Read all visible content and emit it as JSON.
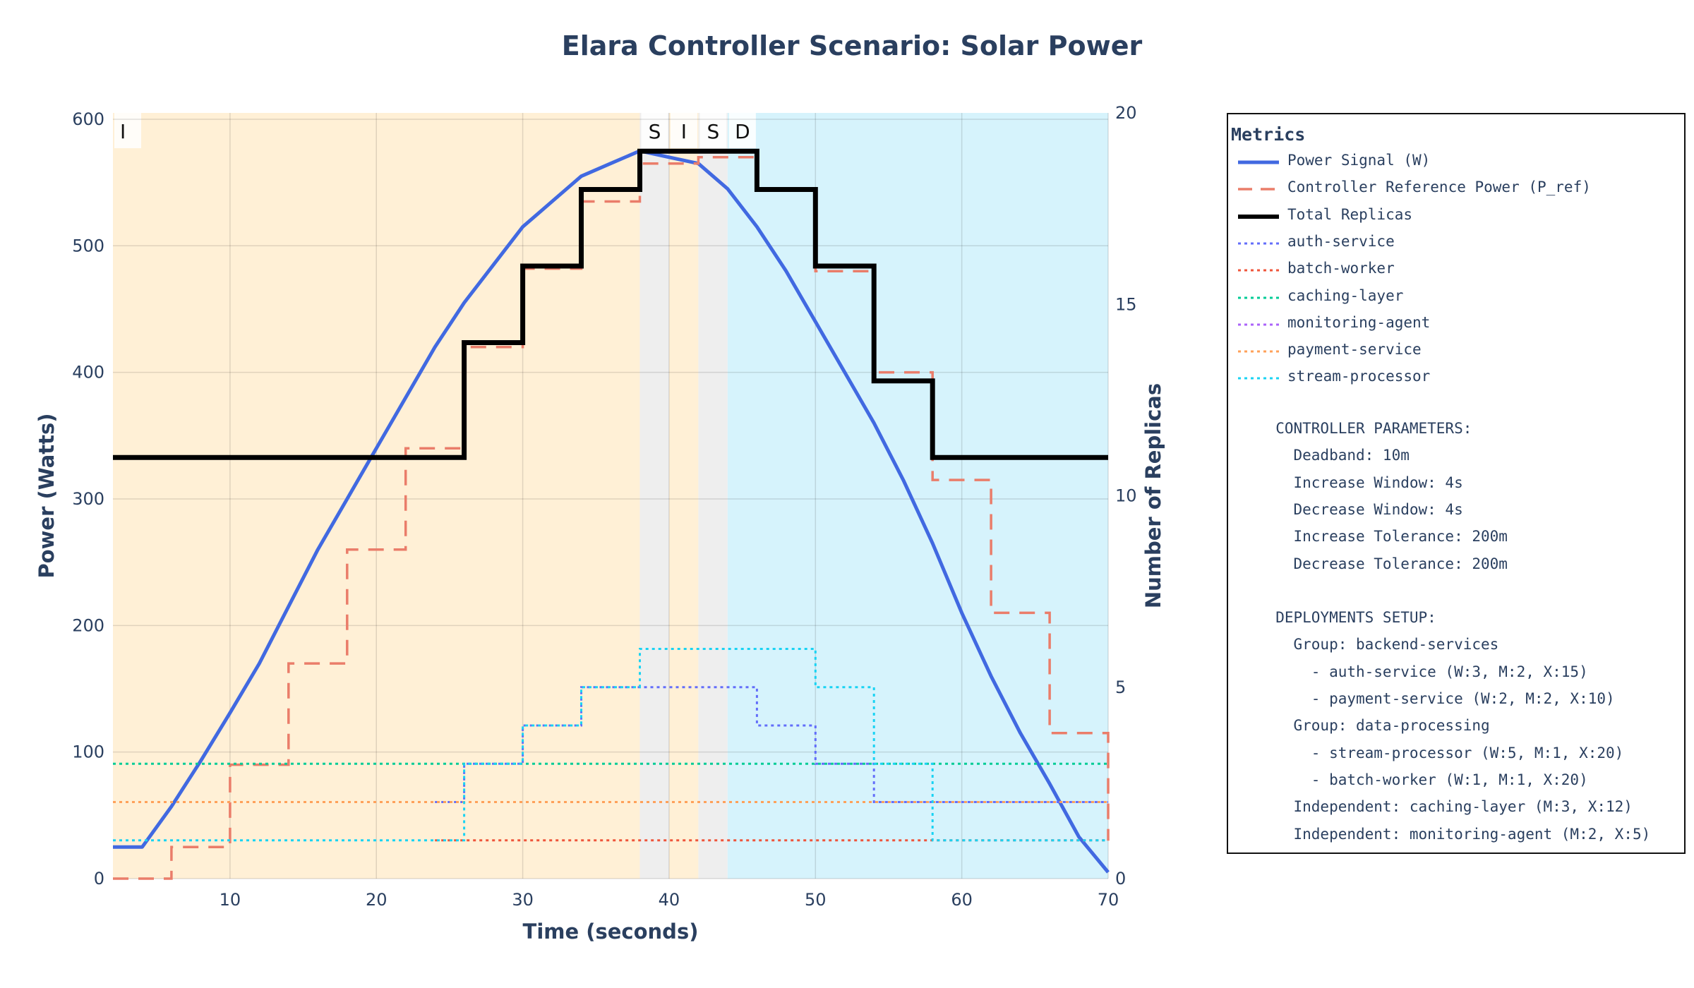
{
  "chart_data": {
    "type": "line",
    "title": "Elara Controller Scenario: Solar Power",
    "xlabel": "Time (seconds)",
    "ylabel": "Power (Watts)",
    "y2label": "Number of Replicas",
    "xlim": [
      2,
      70
    ],
    "ylim": [
      0,
      605
    ],
    "y2lim": [
      0,
      20
    ],
    "x_ticks": [
      10,
      20,
      30,
      40,
      50,
      60,
      70
    ],
    "y_ticks": [
      0,
      100,
      200,
      300,
      400,
      500,
      600
    ],
    "y2_ticks": [
      0,
      5,
      10,
      15,
      20
    ],
    "grid": true,
    "phase_regions": [
      {
        "label": "I",
        "x0": 2,
        "x1": 38,
        "color": "#fff0d6"
      },
      {
        "label": "S",
        "x0": 38,
        "x1": 40,
        "color": "#eeeeee"
      },
      {
        "label": "I",
        "x0": 40,
        "x1": 42,
        "color": "#fff0d6"
      },
      {
        "label": "S",
        "x0": 42,
        "x1": 44,
        "color": "#eeeeee"
      },
      {
        "label": "D",
        "x0": 44,
        "x1": 70,
        "color": "#d6f3fc"
      }
    ],
    "series": [
      {
        "name": "Power Signal (W)",
        "axis": "y",
        "color": "#4169e1",
        "dash": "solid",
        "width": 5,
        "step": false,
        "x": [
          2,
          4,
          6,
          8,
          10,
          12,
          14,
          16,
          18,
          20,
          22,
          24,
          26,
          28,
          30,
          32,
          34,
          36,
          38,
          40,
          42,
          44,
          46,
          48,
          50,
          52,
          54,
          56,
          58,
          60,
          62,
          64,
          66,
          68,
          70
        ],
        "values": [
          25,
          25,
          57,
          93,
          131,
          170,
          215,
          260,
          300,
          340,
          380,
          420,
          455,
          485,
          515,
          535,
          555,
          565,
          575,
          570,
          565,
          545,
          515,
          480,
          440,
          400,
          360,
          315,
          265,
          210,
          160,
          115,
          75,
          33,
          5
        ]
      },
      {
        "name": "Controller Reference Power (P_ref)",
        "axis": "y",
        "color": "#ea7d6a",
        "dash": "long",
        "width": 3.5,
        "step": true,
        "x": [
          2,
          4,
          6,
          8,
          10,
          12,
          14,
          16,
          18,
          20,
          22,
          24,
          26,
          28,
          30,
          32,
          34,
          36,
          38,
          40,
          42,
          44,
          46,
          48,
          50,
          52,
          54,
          56,
          58,
          60,
          62,
          64,
          66,
          68,
          70
        ],
        "values": [
          0,
          0,
          25,
          25,
          90,
          90,
          170,
          170,
          260,
          260,
          340,
          340,
          420,
          420,
          482,
          482,
          535,
          535,
          565,
          565,
          570,
          570,
          545,
          545,
          480,
          480,
          400,
          400,
          315,
          315,
          210,
          210,
          115,
          115,
          30
        ]
      },
      {
        "name": "Total Replicas",
        "axis": "y2",
        "color": "#000000",
        "dash": "solid",
        "width": 7,
        "step": true,
        "x": [
          2,
          24,
          26,
          28,
          30,
          32,
          34,
          36,
          38,
          40,
          42,
          44,
          46,
          48,
          50,
          52,
          54,
          56,
          58,
          70
        ],
        "values": [
          11,
          11,
          14,
          14,
          16,
          16,
          18,
          18,
          19,
          19,
          19,
          19,
          18,
          18,
          16,
          16,
          13,
          13,
          11,
          11
        ]
      },
      {
        "name": "auth-service",
        "axis": "y2",
        "color": "#636efa",
        "dash": "dot",
        "width": 3,
        "step": true,
        "x": [
          24,
          26,
          28,
          30,
          32,
          34,
          36,
          38,
          40,
          42,
          44,
          46,
          48,
          50,
          52,
          54,
          56,
          58,
          60,
          62,
          64,
          66,
          68,
          70
        ],
        "values": [
          2,
          3,
          3,
          4,
          4,
          5,
          5,
          5,
          5,
          5,
          5,
          4,
          4,
          3,
          3,
          2,
          2,
          2,
          2,
          2,
          2,
          2,
          2,
          2
        ]
      },
      {
        "name": "batch-worker",
        "axis": "y2",
        "color": "#ef553b",
        "dash": "dot",
        "width": 3,
        "step": true,
        "x": [
          24,
          70
        ],
        "values": [
          1,
          1
        ]
      },
      {
        "name": "caching-layer",
        "axis": "y2",
        "color": "#00cc96",
        "dash": "dot",
        "width": 3,
        "step": true,
        "x": [
          2,
          70
        ],
        "values": [
          3,
          3
        ]
      },
      {
        "name": "monitoring-agent",
        "axis": "y2",
        "color": "#ab63fa",
        "dash": "dot",
        "width": 3,
        "step": true,
        "x": [
          2,
          70
        ],
        "values": [
          2,
          2
        ]
      },
      {
        "name": "payment-service",
        "axis": "y2",
        "color": "#ffa15a",
        "dash": "dot",
        "width": 3,
        "step": true,
        "x": [
          2,
          70
        ],
        "values": [
          2,
          2
        ]
      },
      {
        "name": "stream-processor",
        "axis": "y2",
        "color": "#19d3f3",
        "dash": "dot",
        "width": 3,
        "step": true,
        "x": [
          2,
          24,
          26,
          28,
          30,
          32,
          34,
          36,
          38,
          40,
          42,
          44,
          46,
          48,
          50,
          52,
          54,
          56,
          58,
          70
        ],
        "values": [
          1,
          1,
          3,
          3,
          4,
          4,
          5,
          5,
          6,
          6,
          6,
          6,
          6,
          6,
          5,
          5,
          3,
          3,
          1,
          1
        ]
      }
    ]
  },
  "legend": {
    "title": "Metrics",
    "notes": [
      "     CONTROLLER PARAMETERS:",
      "       Deadband: 10m",
      "       Increase Window: 4s",
      "       Decrease Window: 4s",
      "       Increase Tolerance: 200m",
      "       Decrease Tolerance: 200m",
      "",
      "     DEPLOYMENTS SETUP:",
      "       Group: backend-services",
      "         - auth-service (W:3, M:2, X:15)",
      "         - payment-service (W:2, M:2, X:10)",
      "       Group: data-processing",
      "         - stream-processor (W:5, M:1, X:20)",
      "         - batch-worker (W:1, M:1, X:20)",
      "       Independent: caching-layer (M:3, X:12)",
      "       Independent: monitoring-agent (M:2, X:5)"
    ]
  }
}
